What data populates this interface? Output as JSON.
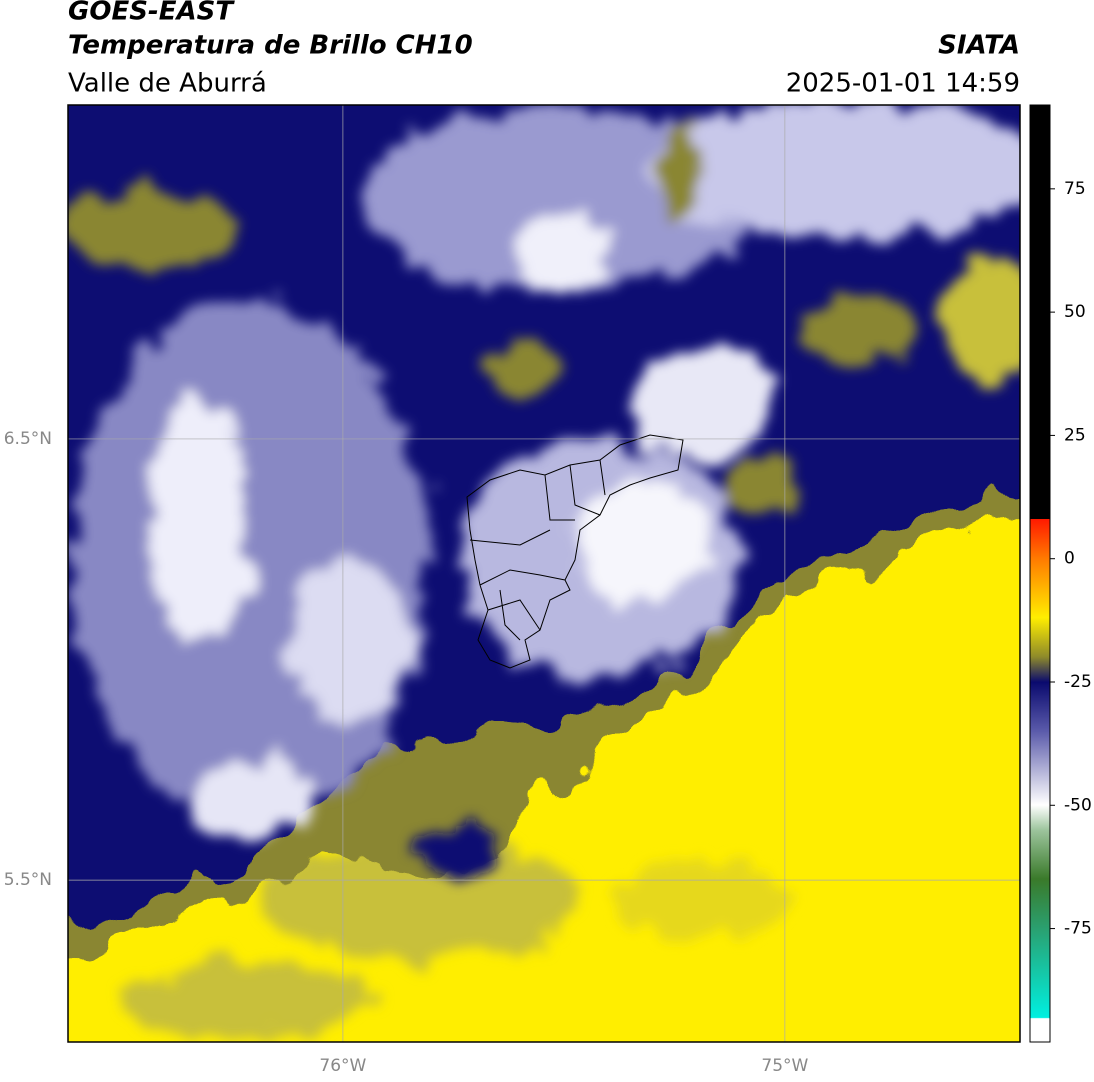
{
  "header": {
    "title": "GOES-EAST",
    "subtitle": "Temperatura de Brillo CH10",
    "source": "SIATA",
    "region": "Valle de Aburrá",
    "timestamp": "2025-01-01 14:59"
  },
  "map": {
    "xlim": [
      -76.622,
      -74.468
    ],
    "ylim": [
      5.133,
      7.257
    ],
    "xticks": [
      {
        "value": -76,
        "label": "76°W"
      },
      {
        "value": -75,
        "label": "75°W"
      }
    ],
    "yticks": [
      {
        "value": 5.5,
        "label": "5.5°N"
      },
      {
        "value": 6.5,
        "label": "6.5°N"
      }
    ],
    "grid": true
  },
  "colorbar": {
    "clim": [
      -98,
      92
    ],
    "ticks": [
      75,
      50,
      25,
      0,
      -25,
      -50,
      -75
    ]
  }
}
